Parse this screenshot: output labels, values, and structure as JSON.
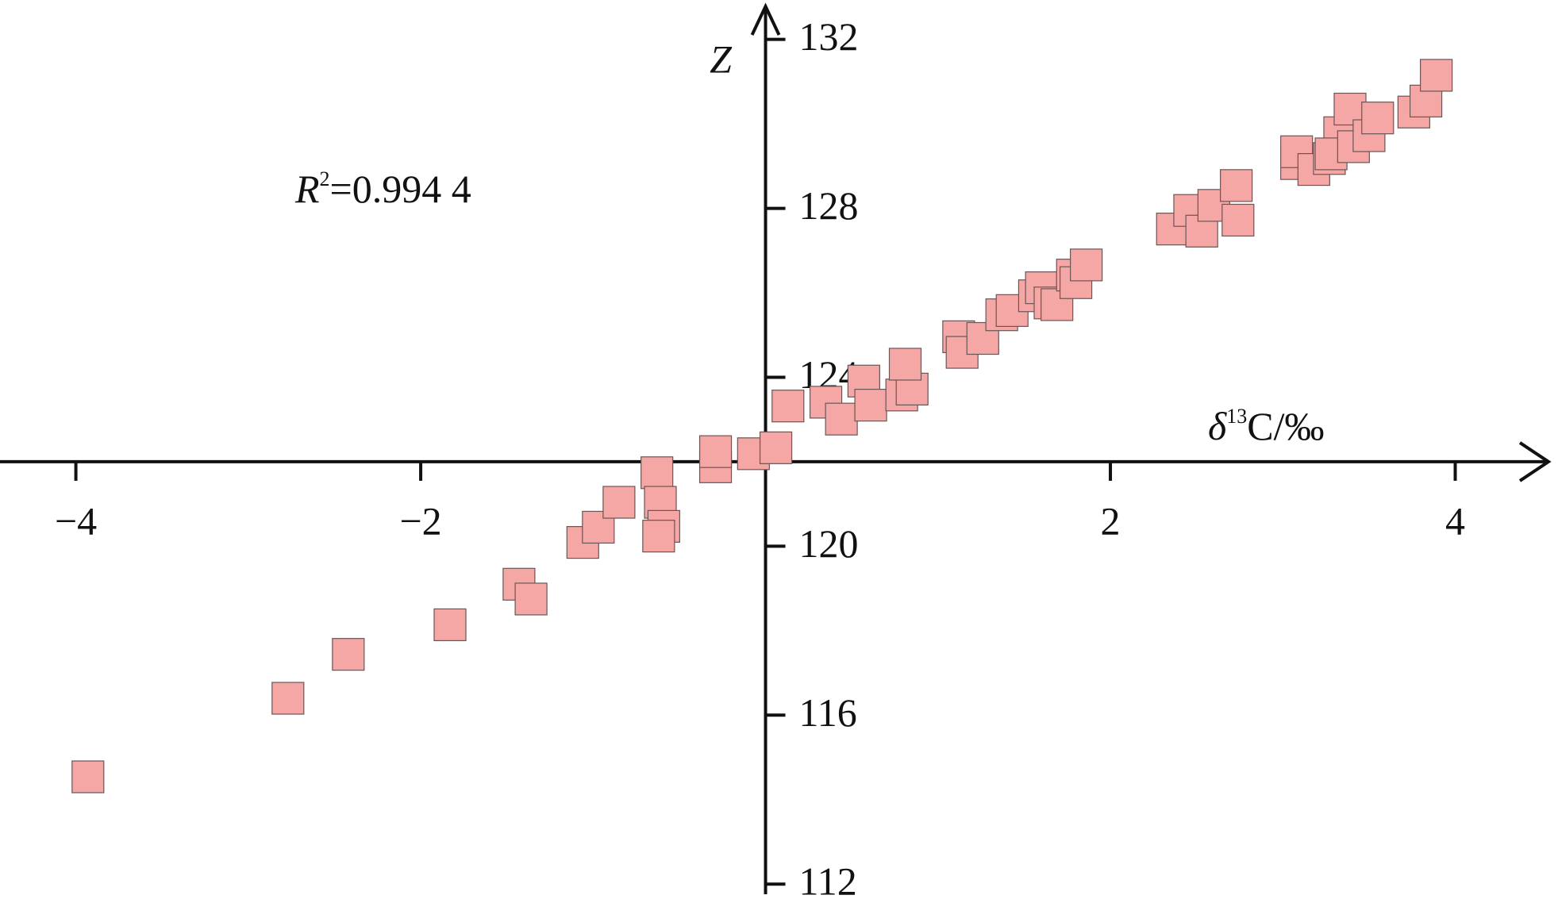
{
  "chart_data": {
    "type": "scatter",
    "x_label_parts": [
      "δ",
      "13",
      "C/‰"
    ],
    "y_label": "Z",
    "annotation_parts": [
      "R",
      "2",
      "=0.994 4"
    ],
    "xlim": [
      -4.44,
      4.55
    ],
    "ylim": [
      111.76,
      132.82
    ],
    "xticks": [
      {
        "value": -4,
        "label": "−4"
      },
      {
        "value": -2,
        "label": "−2"
      },
      2,
      4
    ],
    "yticks": [
      112,
      116,
      120,
      124,
      128,
      132
    ],
    "x_axis_at": 122,
    "y_axis_at": 0,
    "grid": false,
    "color": "#f4a7a5",
    "x": [
      -3.93,
      -2.77,
      -2.42,
      -1.83,
      -1.43,
      -1.36,
      -1.06,
      -0.97,
      -0.85,
      -0.63,
      -0.61,
      -0.59,
      -0.62,
      -0.29,
      -0.29,
      -0.07,
      0.06,
      0.13,
      0.35,
      0.44,
      0.57,
      0.61,
      0.79,
      0.85,
      0.81,
      1.12,
      1.14,
      1.26,
      1.37,
      1.43,
      1.56,
      1.6,
      1.65,
      1.69,
      1.78,
      1.8,
      1.86,
      2.36,
      2.46,
      2.53,
      2.6,
      2.73,
      2.74,
      3.08,
      3.08,
      3.18,
      3.27,
      3.33,
      3.28,
      3.41,
      3.39,
      3.5,
      3.55,
      3.76,
      3.83,
      3.89
    ],
    "values": [
      114.54,
      116.4,
      117.44,
      118.14,
      119.1,
      118.75,
      120.09,
      120.45,
      121.04,
      121.74,
      121.04,
      120.47,
      120.24,
      121.88,
      122.24,
      122.19,
      122.33,
      123.32,
      123.41,
      123.01,
      123.91,
      123.34,
      123.58,
      123.72,
      124.31,
      124.96,
      124.59,
      124.92,
      125.48,
      125.58,
      125.93,
      126.12,
      125.76,
      125.72,
      126.42,
      126.24,
      126.66,
      127.51,
      127.95,
      127.46,
      128.07,
      128.54,
      127.72,
      129.06,
      129.34,
      128.92,
      129.18,
      129.79,
      129.29,
      129.46,
      130.35,
      129.72,
      130.14,
      130.28,
      130.54,
      131.15
    ]
  }
}
